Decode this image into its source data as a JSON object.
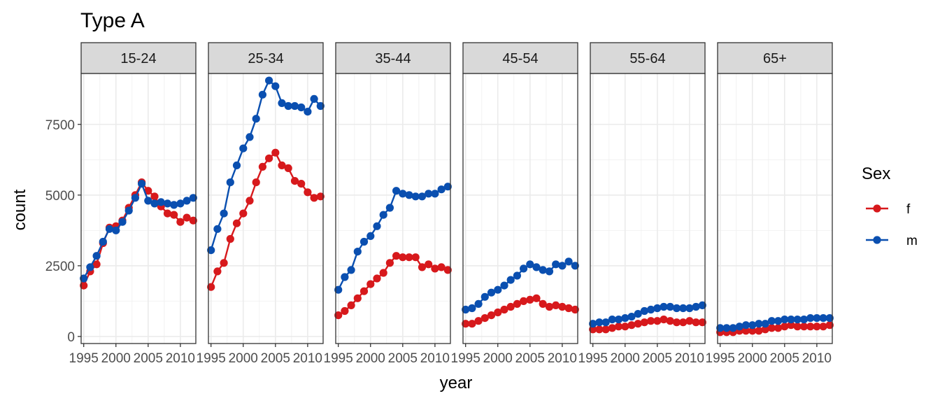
{
  "chart_data": {
    "type": "line",
    "title": "Type A",
    "xlabel": "year",
    "ylabel": "count",
    "x": [
      1995,
      1996,
      1997,
      1998,
      1999,
      2000,
      2001,
      2002,
      2003,
      2004,
      2005,
      2006,
      2007,
      2008,
      2009,
      2010,
      2011,
      2012
    ],
    "xlim": [
      1994.6,
      2012.4
    ],
    "xticks": [
      1995,
      2000,
      2005,
      2010
    ],
    "ylim": [
      -250,
      9300
    ],
    "yticks": [
      0,
      2500,
      5000,
      7500
    ],
    "legend": {
      "title": "Sex",
      "position": "right",
      "entries": [
        "f",
        "m"
      ]
    },
    "colors": {
      "f": "#d7191c",
      "m": "#0a4fb0"
    },
    "grid": true,
    "facets": [
      {
        "label": "15-24",
        "series": [
          {
            "name": "f",
            "values": [
              1800,
              2300,
              2550,
              3300,
              3850,
              3900,
              4100,
              4550,
              5000,
              5450,
              5150,
              4950,
              4600,
              4350,
              4300,
              4050,
              4200,
              4100
            ]
          },
          {
            "name": "m",
            "values": [
              2050,
              2450,
              2850,
              3350,
              3800,
              3750,
              4050,
              4450,
              4900,
              5400,
              4800,
              4700,
              4750,
              4700,
              4650,
              4700,
              4800,
              4900
            ]
          }
        ]
      },
      {
        "label": "25-34",
        "series": [
          {
            "name": "f",
            "values": [
              1750,
              2300,
              2600,
              3450,
              4000,
              4350,
              4800,
              5450,
              6000,
              6300,
              6500,
              6050,
              5950,
              5500,
              5400,
              5100,
              4900,
              4950
            ]
          },
          {
            "name": "m",
            "values": [
              3050,
              3800,
              4350,
              5450,
              6050,
              6650,
              7050,
              7700,
              8550,
              9050,
              8850,
              8250,
              8150,
              8150,
              8100,
              7950,
              8400,
              8150
            ]
          }
        ]
      },
      {
        "label": "35-44",
        "series": [
          {
            "name": "f",
            "values": [
              750,
              900,
              1100,
              1350,
              1600,
              1850,
              2050,
              2250,
              2600,
              2850,
              2800,
              2800,
              2800,
              2450,
              2550,
              2400,
              2450,
              2350
            ]
          },
          {
            "name": "m",
            "values": [
              1650,
              2100,
              2350,
              3000,
              3350,
              3550,
              3900,
              4300,
              4550,
              5150,
              5050,
              5000,
              4950,
              4950,
              5050,
              5050,
              5200,
              5300
            ]
          }
        ]
      },
      {
        "label": "45-54",
        "series": [
          {
            "name": "f",
            "values": [
              450,
              450,
              550,
              650,
              750,
              850,
              950,
              1050,
              1150,
              1250,
              1300,
              1350,
              1150,
              1050,
              1100,
              1050,
              1000,
              950
            ]
          },
          {
            "name": "m",
            "values": [
              950,
              1000,
              1150,
              1400,
              1550,
              1650,
              1800,
              2000,
              2150,
              2400,
              2550,
              2450,
              2350,
              2300,
              2550,
              2500,
              2650,
              2500
            ]
          }
        ]
      },
      {
        "label": "55-64",
        "series": [
          {
            "name": "f",
            "values": [
              250,
              250,
              250,
              300,
              350,
              350,
              400,
              450,
              500,
              550,
              550,
              600,
              550,
              500,
              500,
              550,
              500,
              500
            ]
          },
          {
            "name": "m",
            "values": [
              450,
              500,
              500,
              600,
              600,
              650,
              700,
              800,
              900,
              950,
              1000,
              1050,
              1050,
              1000,
              1000,
              1000,
              1050,
              1100
            ]
          }
        ]
      },
      {
        "label": "65+",
        "series": [
          {
            "name": "f",
            "values": [
              150,
              150,
              150,
              200,
              200,
              200,
              200,
              250,
              300,
              300,
              350,
              400,
              350,
              350,
              350,
              350,
              350,
              400
            ]
          },
          {
            "name": "m",
            "values": [
              300,
              300,
              300,
              350,
              400,
              400,
              450,
              450,
              550,
              550,
              600,
              600,
              600,
              600,
              650,
              650,
              650,
              650
            ]
          }
        ]
      }
    ]
  }
}
